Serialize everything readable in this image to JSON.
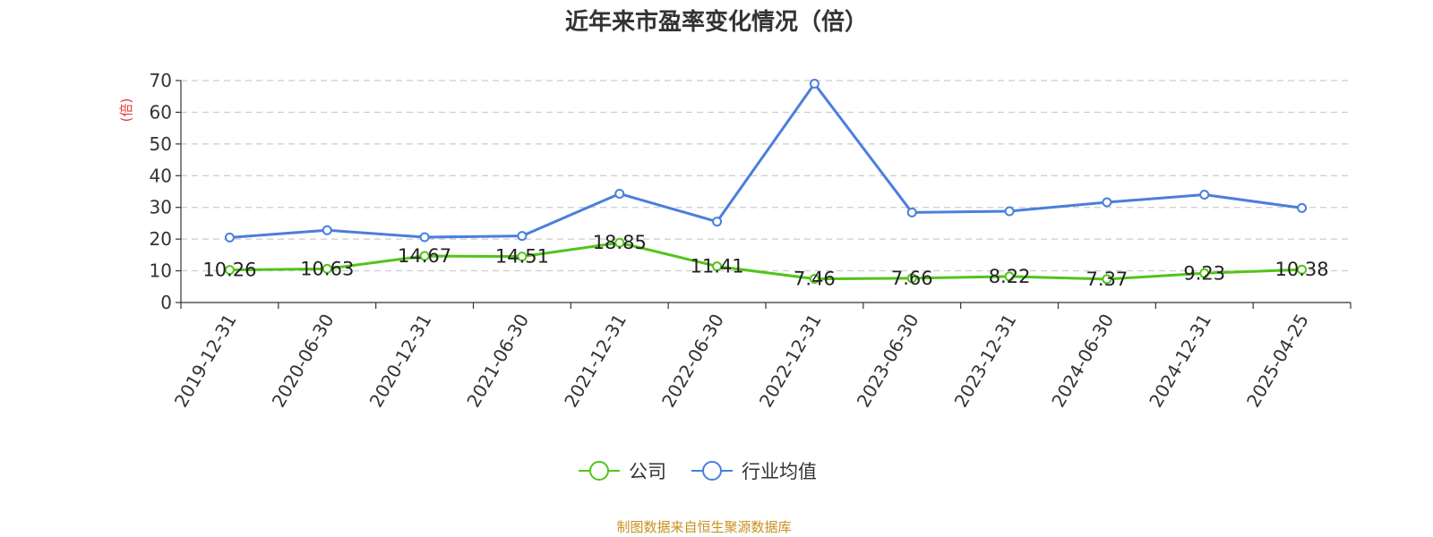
{
  "chart_data": {
    "type": "line",
    "title": "近年来市盈率变化情况（倍）",
    "ylabel": "(倍)",
    "ylabel_color": "#e53935",
    "ylim": [
      0,
      70
    ],
    "yticks": [
      0,
      10,
      20,
      30,
      40,
      50,
      60,
      70
    ],
    "grid": true,
    "legend_placement": "bottom-center",
    "categories": [
      "2019-12-31",
      "2020-06-30",
      "2020-12-31",
      "2021-06-30",
      "2021-12-31",
      "2022-06-30",
      "2022-12-31",
      "2023-06-30",
      "2023-12-31",
      "2024-06-30",
      "2024-12-31",
      "2025-04-25"
    ],
    "series": [
      {
        "name": "公司",
        "color": "#52c41a",
        "values": [
          10.26,
          10.63,
          14.67,
          14.51,
          18.85,
          11.41,
          7.46,
          7.66,
          8.22,
          7.37,
          9.23,
          10.38
        ],
        "labels": [
          "10.26",
          "10.63",
          "14.67",
          "14.51",
          "18.85",
          "11.41",
          "7.46",
          "7.66",
          "8.22",
          "7.37",
          "9.23",
          "10.38"
        ]
      },
      {
        "name": "行业均值",
        "color": "#4a7fdc",
        "values": [
          20.5,
          22.8,
          20.6,
          21.0,
          34.3,
          25.5,
          69.0,
          28.4,
          28.8,
          31.6,
          34.0,
          29.8
        ]
      }
    ]
  },
  "footer": {
    "source": "制图数据来自恒生聚源数据库",
    "source_color": "#c8901e"
  }
}
